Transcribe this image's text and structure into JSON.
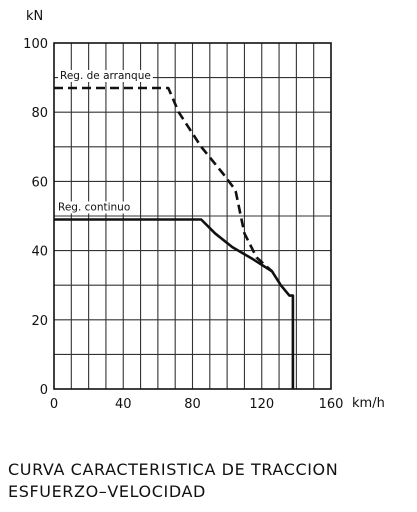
{
  "chart_data": {
    "type": "line",
    "title": "",
    "xlabel": "km/h",
    "ylabel": "kN",
    "xlim": [
      0,
      160
    ],
    "ylim": [
      0,
      100
    ],
    "grid": true,
    "x_ticks": [
      0,
      40,
      80,
      120,
      160
    ],
    "y_ticks": [
      0,
      20,
      40,
      60,
      80,
      100
    ],
    "series": [
      {
        "name": "Reg. de arranque",
        "style": "dashed",
        "color": "#111111",
        "points": [
          [
            0,
            87
          ],
          [
            66,
            87
          ],
          [
            72,
            80
          ],
          [
            85,
            70
          ],
          [
            98,
            62
          ],
          [
            104,
            58
          ],
          [
            105,
            57
          ],
          [
            110,
            45
          ],
          [
            117,
            38
          ],
          [
            126,
            34
          ]
        ]
      },
      {
        "name": "Reg. continuo",
        "style": "solid",
        "color": "#111111",
        "points": [
          [
            0,
            49
          ],
          [
            85,
            49
          ],
          [
            93,
            45
          ],
          [
            103,
            41
          ],
          [
            115,
            37.5
          ],
          [
            126,
            34
          ],
          [
            131,
            30
          ],
          [
            136,
            27
          ],
          [
            138,
            27
          ],
          [
            138,
            0
          ]
        ]
      }
    ]
  },
  "caption": {
    "line1": "CURVA CARACTERISTICA DE TRACCION",
    "line2": "ESFUERZO–VELOCIDAD"
  }
}
